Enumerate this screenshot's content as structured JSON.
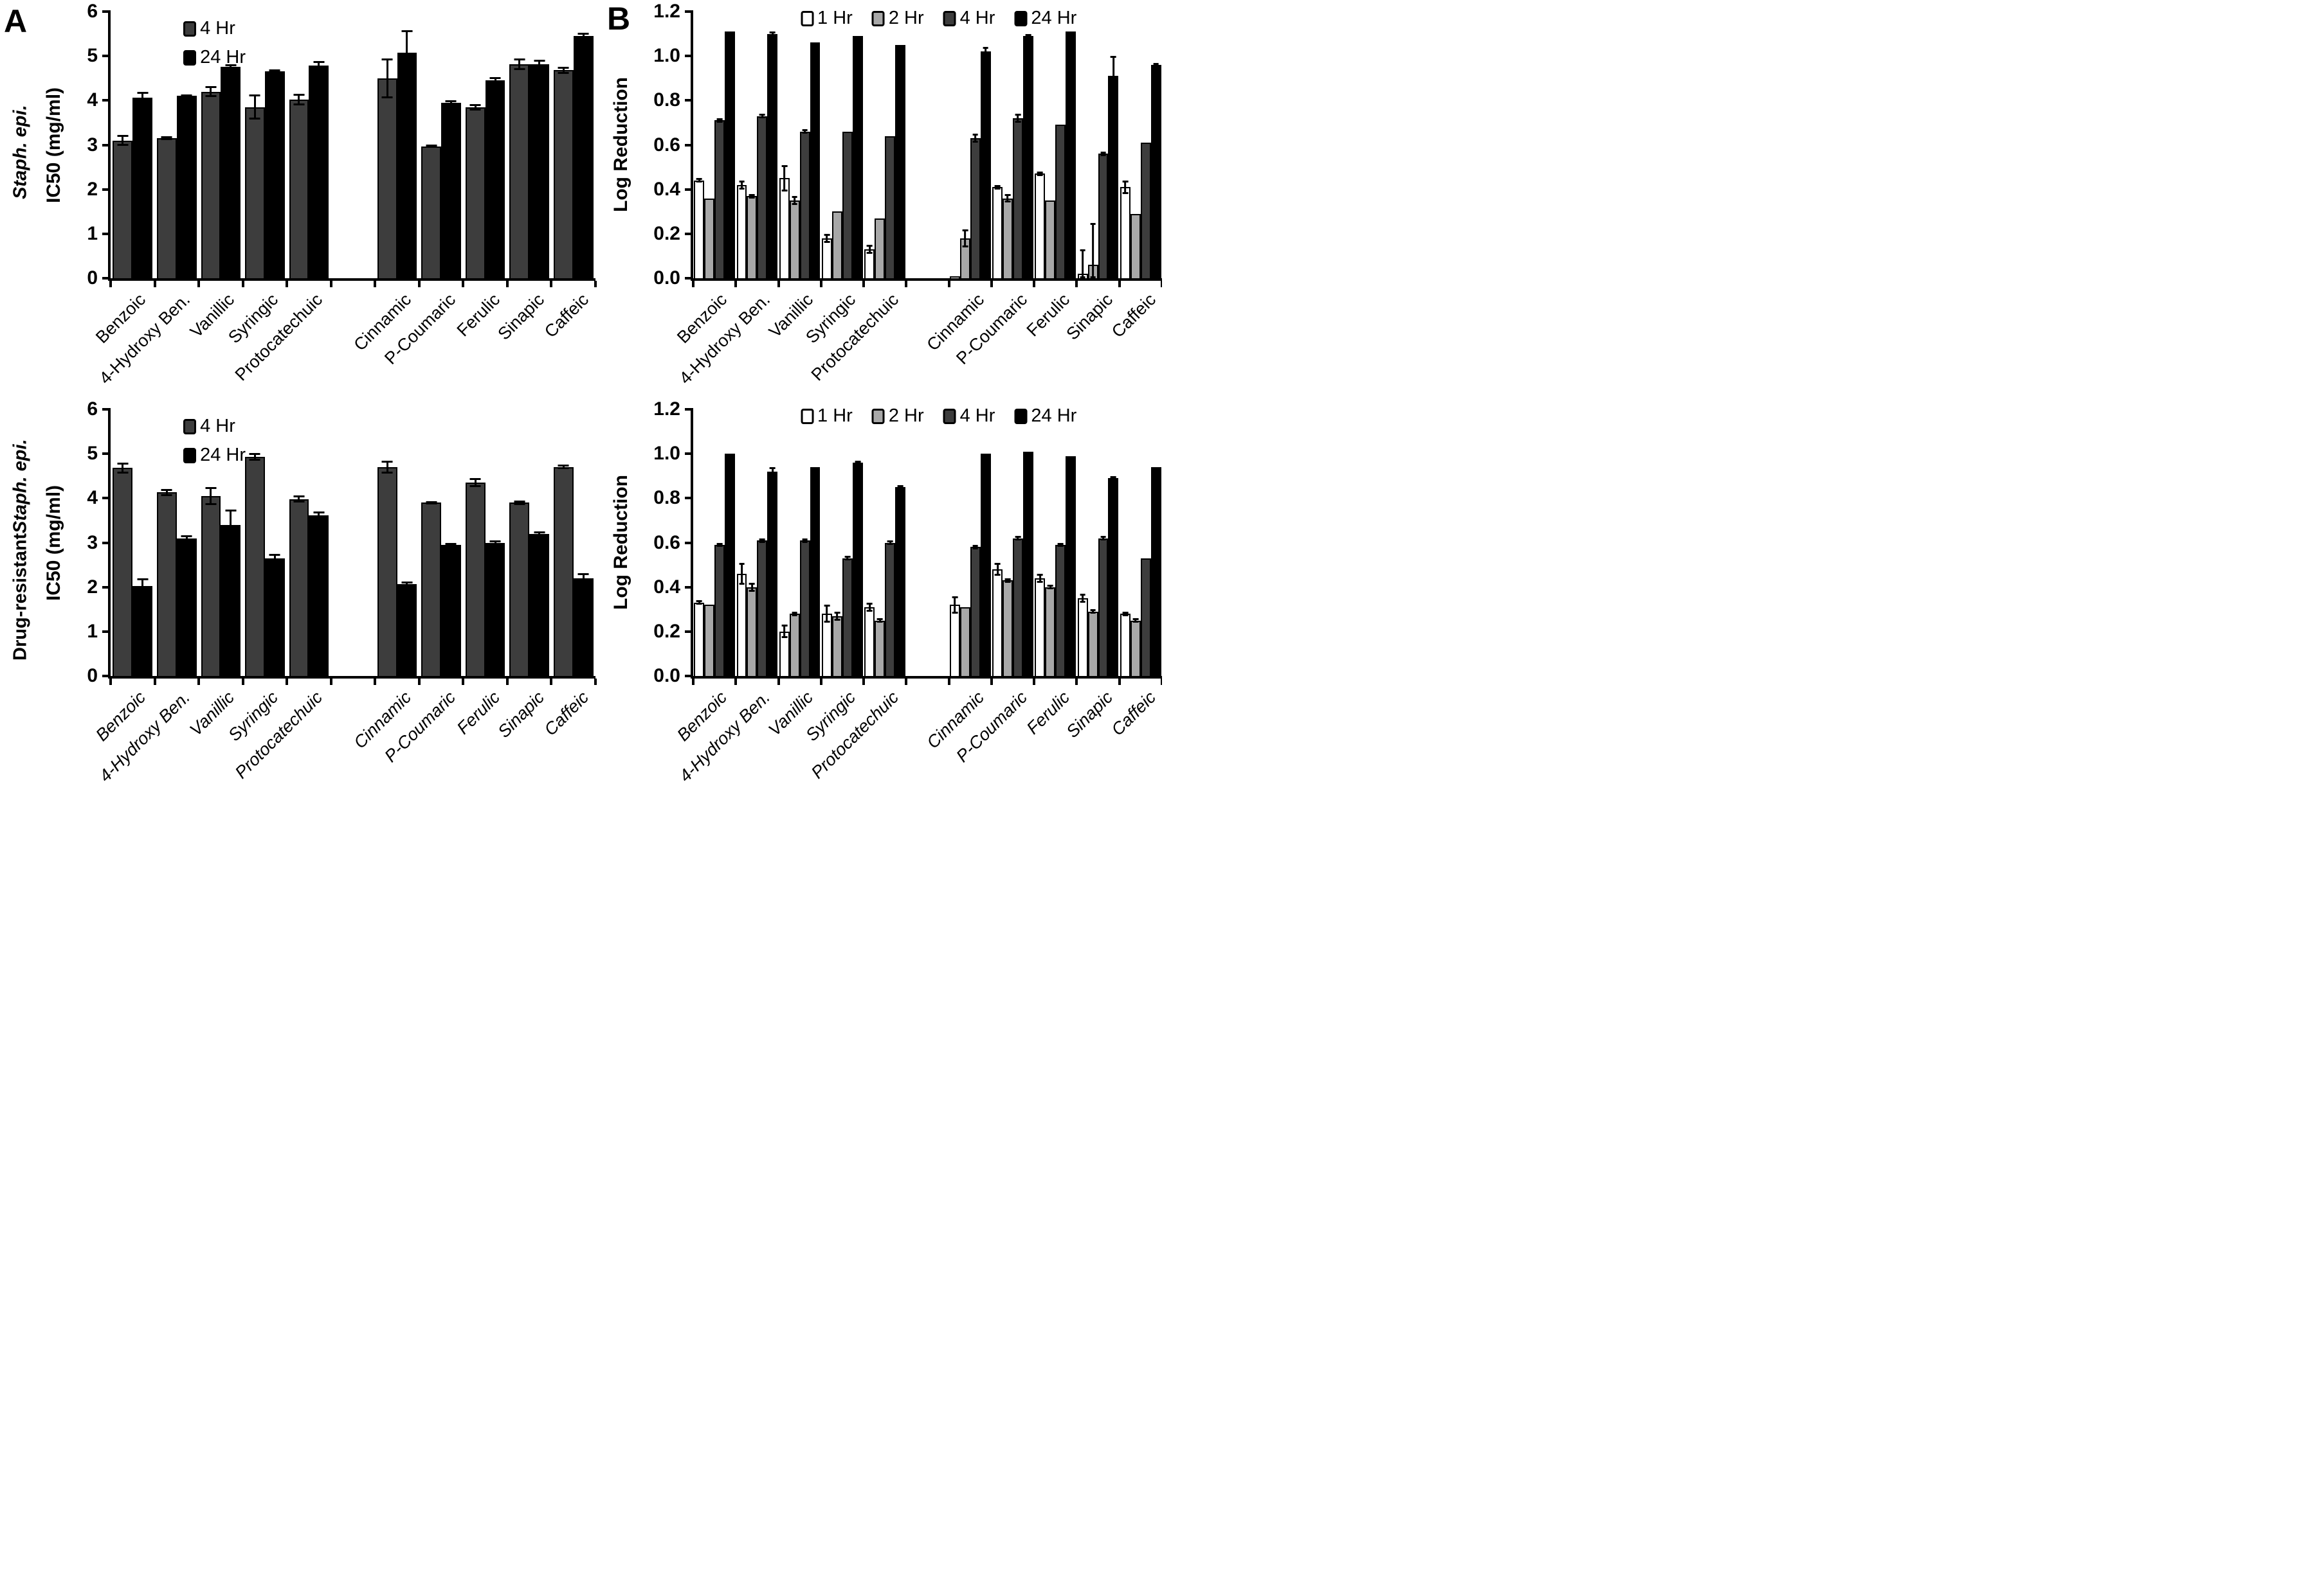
{
  "figure": {
    "panel_a_letter": "A",
    "panel_b_letter": "B",
    "row1_label": {
      "prefix": "",
      "italic": "Staph. epi."
    },
    "row2_label": {
      "prefix": "Drug-resistant ",
      "italic": "Staph. epi."
    },
    "colors": {
      "bar_1hr": "#ffffff",
      "bar_2hr": "#a8a8a8",
      "bar_4hr": "#3d3d3d",
      "bar_24hr": "#000000",
      "axis": "#000000"
    }
  },
  "chart_data": [
    {
      "type": "bar",
      "panel": "A-top",
      "organism": "Staph. epi.",
      "title": "",
      "xlabel": "",
      "ylabel": "IC50 (mg/ml)",
      "ylim": [
        0,
        6
      ],
      "yticks": [
        0,
        1,
        2,
        3,
        4,
        5,
        6
      ],
      "ytick_decimals": 0,
      "grid": false,
      "legend_layout": "stacked",
      "xlabel_italic": false,
      "categories": [
        "Benzoic",
        "4-Hydroxy Ben.",
        "Vanillic",
        "Syringic",
        "Protocatechuic",
        "Cinnamic",
        "P-Coumaric",
        "Ferulic",
        "Sinapic",
        "Caffeic"
      ],
      "gap_after_index": 4,
      "series": [
        {
          "name": "4 Hr",
          "color": "#3d3d3d",
          "dotted": false,
          "values": [
            3.1,
            3.15,
            4.2,
            3.85,
            4.02,
            4.5,
            2.97,
            3.85,
            4.82,
            4.68
          ],
          "errors": [
            0.12,
            0.04,
            0.12,
            0.28,
            0.13,
            0.45,
            0.04,
            0.07,
            0.13,
            0.08
          ]
        },
        {
          "name": "24 Hr",
          "color": "#000000",
          "dotted": false,
          "values": [
            4.07,
            4.1,
            4.75,
            4.65,
            4.78,
            5.08,
            3.95,
            4.45,
            4.82,
            5.45
          ],
          "errors": [
            0.13,
            0.04,
            0.06,
            0.05,
            0.1,
            0.5,
            0.06,
            0.07,
            0.1,
            0.08
          ]
        }
      ]
    },
    {
      "type": "bar",
      "panel": "B-top",
      "organism": "Staph. epi.",
      "title": "",
      "xlabel": "",
      "ylabel": "Log Reduction",
      "ylim": [
        0,
        1.2
      ],
      "yticks": [
        0,
        0.2,
        0.4,
        0.6,
        0.8,
        1.0,
        1.2
      ],
      "ytick_decimals": 1,
      "grid": false,
      "legend_layout": "row",
      "xlabel_italic": false,
      "categories": [
        "Benzoic",
        "4-Hydroxy Ben.",
        "Vanillic",
        "Syringic",
        "Protocatechuic",
        "Cinnamic",
        "P-Coumaric",
        "Ferulic",
        "Sinapic",
        "Caffeic"
      ],
      "gap_after_index": 4,
      "series": [
        {
          "name": "1 Hr",
          "color": "#ffffff",
          "dotted": false,
          "values": [
            0.44,
            0.42,
            0.45,
            0.18,
            0.13,
            0.01,
            0.41,
            0.47,
            0.02,
            0.41
          ],
          "errors": [
            0.01,
            0.02,
            0.06,
            0.02,
            0.02,
            0.0,
            0.01,
            0.01,
            0.11,
            0.03
          ]
        },
        {
          "name": "2 Hr",
          "color": "#a8a8a8",
          "dotted": true,
          "values": [
            0.36,
            0.37,
            0.35,
            0.3,
            0.27,
            0.18,
            0.36,
            0.35,
            0.06,
            0.29
          ],
          "errors": [
            0.0,
            0.01,
            0.02,
            0.0,
            0.0,
            0.04,
            0.02,
            0.0,
            0.19,
            0.0
          ]
        },
        {
          "name": "4 Hr",
          "color": "#3d3d3d",
          "dotted": true,
          "values": [
            0.71,
            0.73,
            0.66,
            0.66,
            0.64,
            0.63,
            0.72,
            0.69,
            0.56,
            0.61
          ],
          "errors": [
            0.01,
            0.01,
            0.01,
            0.0,
            0.0,
            0.02,
            0.02,
            0.0,
            0.01,
            0.0
          ]
        },
        {
          "name": "24 Hr",
          "color": "#000000",
          "dotted": false,
          "values": [
            1.11,
            1.1,
            1.06,
            1.09,
            1.05,
            1.02,
            1.09,
            1.11,
            0.91,
            0.96
          ],
          "errors": [
            0.0,
            0.01,
            0.0,
            0.0,
            0.0,
            0.02,
            0.01,
            0.0,
            0.09,
            0.01
          ]
        }
      ]
    },
    {
      "type": "bar",
      "panel": "A-bottom",
      "organism": "Drug-resistant Staph. epi.",
      "title": "",
      "xlabel": "",
      "ylabel": "IC50 (mg/ml)",
      "ylim": [
        0,
        6
      ],
      "yticks": [
        0,
        1,
        2,
        3,
        4,
        5,
        6
      ],
      "ytick_decimals": 0,
      "grid": false,
      "legend_layout": "stacked",
      "xlabel_italic": true,
      "categories": [
        "Benzoic",
        "4-Hydroxy Ben.",
        "Vanillic",
        "Syringic",
        "Protocatechuic",
        "Cinnamic",
        "P-Coumaric",
        "Ferulic",
        "Sinapic",
        "Caffeic"
      ],
      "gap_after_index": 4,
      "series": [
        {
          "name": "4 Hr",
          "color": "#3d3d3d",
          "dotted": false,
          "values": [
            4.68,
            4.13,
            4.05,
            4.93,
            3.98,
            4.7,
            3.9,
            4.35,
            3.9,
            4.7
          ],
          "errors": [
            0.12,
            0.08,
            0.2,
            0.08,
            0.08,
            0.15,
            0.04,
            0.1,
            0.05,
            0.05
          ]
        },
        {
          "name": "24 Hr",
          "color": "#000000",
          "dotted": false,
          "values": [
            2.02,
            3.1,
            3.4,
            2.65,
            3.62,
            2.07,
            2.95,
            3.0,
            3.2,
            2.2
          ],
          "errors": [
            0.18,
            0.06,
            0.35,
            0.1,
            0.08,
            0.05,
            0.04,
            0.05,
            0.05,
            0.12
          ]
        }
      ]
    },
    {
      "type": "bar",
      "panel": "B-bottom",
      "organism": "Drug-resistant Staph. epi.",
      "title": "",
      "xlabel": "",
      "ylabel": "Log Reduction",
      "ylim": [
        0,
        1.2
      ],
      "yticks": [
        0,
        0.2,
        0.4,
        0.6,
        0.8,
        1.0,
        1.2
      ],
      "ytick_decimals": 1,
      "grid": false,
      "legend_layout": "row",
      "xlabel_italic": true,
      "categories": [
        "Benzoic",
        "4-Hydroxy Ben.",
        "Vanillic",
        "Syringic",
        "Protocatechuic",
        "Cinnamic",
        "P-Coumaric",
        "Ferulic",
        "Sinapic",
        "Caffeic"
      ],
      "gap_after_index": 4,
      "series": [
        {
          "name": "1 Hr",
          "color": "#ffffff",
          "dotted": false,
          "values": [
            0.33,
            0.46,
            0.2,
            0.28,
            0.31,
            0.32,
            0.48,
            0.44,
            0.35,
            0.28
          ],
          "errors": [
            0.01,
            0.05,
            0.03,
            0.04,
            0.02,
            0.04,
            0.03,
            0.02,
            0.02,
            0.01
          ]
        },
        {
          "name": "2 Hr",
          "color": "#a8a8a8",
          "dotted": true,
          "values": [
            0.32,
            0.4,
            0.28,
            0.27,
            0.25,
            0.31,
            0.43,
            0.4,
            0.29,
            0.25
          ],
          "errors": [
            0.0,
            0.02,
            0.01,
            0.02,
            0.01,
            0.0,
            0.01,
            0.01,
            0.01,
            0.01
          ]
        },
        {
          "name": "4 Hr",
          "color": "#3d3d3d",
          "dotted": true,
          "values": [
            0.59,
            0.61,
            0.61,
            0.53,
            0.6,
            0.58,
            0.62,
            0.59,
            0.62,
            0.53
          ],
          "errors": [
            0.01,
            0.01,
            0.01,
            0.01,
            0.01,
            0.01,
            0.01,
            0.01,
            0.01,
            0.0
          ]
        },
        {
          "name": "24 Hr",
          "color": "#000000",
          "dotted": false,
          "values": [
            1.0,
            0.92,
            0.94,
            0.96,
            0.85,
            1.0,
            1.01,
            0.99,
            0.89,
            0.94
          ],
          "errors": [
            0.0,
            0.02,
            0.0,
            0.01,
            0.01,
            0.0,
            0.0,
            0.0,
            0.01,
            0.0
          ]
        }
      ]
    }
  ]
}
